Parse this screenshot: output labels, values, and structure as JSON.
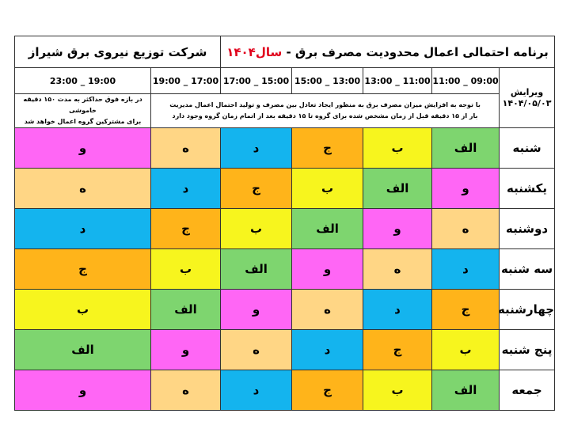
{
  "header": {
    "title": "برنامه احتمالی اعمال محدودیت مصرف برق  - ",
    "title_year": "سال۱۴۰۴",
    "company": "شرکت توزیع نیروی برق شیراز"
  },
  "edition": {
    "label": "ویرایش",
    "date": "۱۴۰۴/۰۵/۰۳"
  },
  "times": [
    "09:00 _ 11:00",
    "11:00 _ 13:00",
    "13:00 _ 15:00",
    "15:00 _ 17:00",
    "17:00 _ 19:00",
    "19:00 _ 23:00"
  ],
  "notes": {
    "main": [
      "با توجه به افزایش میزان مصرف برق به منظور ایجاد تعادل بین مصرف و تولید احتمال اعمال مدیریت",
      "بار از ۱۵ دقیقه قبل از زمان مشخص شده برای گروه تا ۱۵ دقیقه بعد از اتمام زمان گروه وجود دارد"
    ],
    "side": [
      "در بازه فوق حداکثر به مدت ۱۵۰ دقیقه خاموشی",
      "برای مشترکین گروه اعمال خواهد شد"
    ]
  },
  "group_colors": {
    "الف": "#7ed56f",
    "ب": "#f7f51e",
    "ج": "#ffb41a",
    "د": "#14b4ee",
    "ه": "#ffd685",
    "و": "#ff66f5"
  },
  "rows": [
    {
      "day": "شنبه",
      "cells": [
        "الف",
        "ب",
        "ج",
        "د",
        "ه",
        "و"
      ]
    },
    {
      "day": "یکشنبه",
      "cells": [
        "و",
        "الف",
        "ب",
        "ج",
        "د",
        "ه"
      ]
    },
    {
      "day": "دوشنبه",
      "cells": [
        "ه",
        "و",
        "الف",
        "ب",
        "ج",
        "د"
      ]
    },
    {
      "day": "سه شنبه",
      "cells": [
        "د",
        "ه",
        "و",
        "الف",
        "ب",
        "ج"
      ]
    },
    {
      "day": "چهارشنبه",
      "cells": [
        "ج",
        "د",
        "ه",
        "و",
        "الف",
        "ب"
      ]
    },
    {
      "day": "پنج شنبه",
      "cells": [
        "ب",
        "ج",
        "د",
        "ه",
        "و",
        "الف"
      ]
    },
    {
      "day": "جمعه",
      "cells": [
        "الف",
        "ب",
        "ج",
        "د",
        "ه",
        "و"
      ]
    }
  ]
}
